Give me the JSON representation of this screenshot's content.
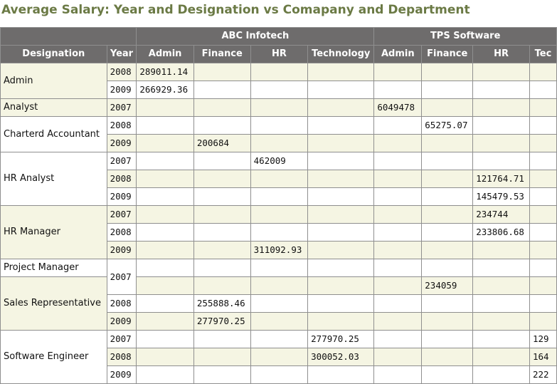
{
  "title": "Average Salary: Year and Designation vs Comapany and Department",
  "companies": [
    "ABC Infotech",
    "TPS Software"
  ],
  "columns": {
    "designation": "Designation",
    "year": "Year",
    "departments": [
      "Admin",
      "Finance",
      "HR",
      "Technology",
      "Admin",
      "Finance",
      "HR",
      "Tec"
    ]
  },
  "groups": {
    "admin": "Admin",
    "analyst": "Analyst",
    "ca": "Charterd Accountant",
    "hr_analyst": "HR Analyst",
    "hr_manager": "HR Manager",
    "pm": "Project Manager",
    "sales": "Sales Representative",
    "se": "Software Engineer"
  },
  "rows": [
    {
      "year": "2008",
      "cells": [
        "289011.14",
        "",
        "",
        "",
        "",
        "",
        "",
        ""
      ]
    },
    {
      "year": "2009",
      "cells": [
        "266929.36",
        "",
        "",
        "",
        "",
        "",
        "",
        ""
      ]
    },
    {
      "year": "2007",
      "cells": [
        "",
        "",
        "",
        "",
        "6049478",
        "",
        "",
        ""
      ]
    },
    {
      "year": "2008",
      "cells": [
        "",
        "",
        "",
        "",
        "",
        "65275.07",
        "",
        ""
      ]
    },
    {
      "year": "2009",
      "cells": [
        "",
        "200684",
        "",
        "",
        "",
        "",
        "",
        ""
      ]
    },
    {
      "year": "2007",
      "cells": [
        "",
        "",
        "462009",
        "",
        "",
        "",
        "",
        ""
      ]
    },
    {
      "year": "2008",
      "cells": [
        "",
        "",
        "",
        "",
        "",
        "",
        "121764.71",
        ""
      ]
    },
    {
      "year": "2009",
      "cells": [
        "",
        "",
        "",
        "",
        "",
        "",
        "145479.53",
        ""
      ]
    },
    {
      "year": "2007",
      "cells": [
        "",
        "",
        "",
        "",
        "",
        "",
        "234744",
        ""
      ]
    },
    {
      "year": "2008",
      "cells": [
        "",
        "",
        "",
        "",
        "",
        "",
        "233806.68",
        ""
      ]
    },
    {
      "year": "2009",
      "cells": [
        "",
        "",
        "311092.93",
        "",
        "",
        "",
        "",
        ""
      ]
    },
    {
      "year": "2007",
      "cells": [
        "",
        "",
        "",
        "",
        "",
        "",
        "",
        ""
      ]
    },
    {
      "year": "",
      "cells": [
        "",
        "",
        "",
        "",
        "",
        "234059",
        "",
        ""
      ]
    },
    {
      "year": "2008",
      "cells": [
        "",
        "255888.46",
        "",
        "",
        "",
        "",
        "",
        ""
      ]
    },
    {
      "year": "2009",
      "cells": [
        "",
        "277970.25",
        "",
        "",
        "",
        "",
        "",
        ""
      ]
    },
    {
      "year": "2007",
      "cells": [
        "",
        "",
        "",
        "277970.25",
        "",
        "",
        "",
        "129"
      ]
    },
    {
      "year": "2008",
      "cells": [
        "",
        "",
        "",
        "300052.03",
        "",
        "",
        "",
        "164"
      ]
    },
    {
      "year": "2009",
      "cells": [
        "",
        "",
        "",
        "",
        "",
        "",
        "",
        "222"
      ]
    }
  ]
}
